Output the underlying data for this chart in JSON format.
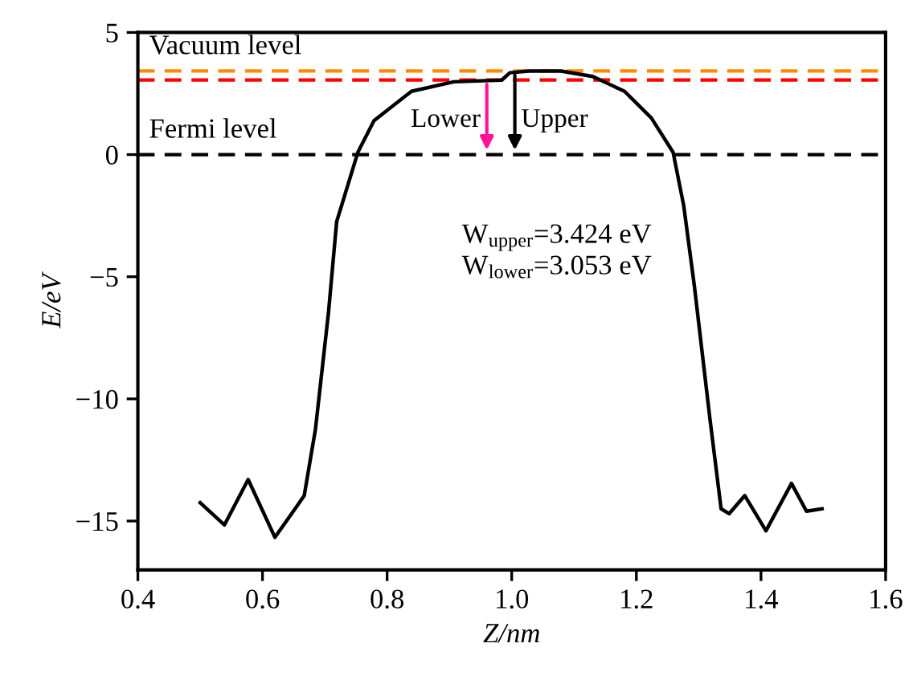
{
  "chart_data": {
    "type": "line",
    "xlabel": "Z/nm",
    "ylabel": "E/eV",
    "xlim": [
      0.4,
      1.6
    ],
    "xticks": [
      0.4,
      0.6,
      0.8,
      {
        "value": 1,
        "label": "1.0"
      },
      1.2,
      1.4,
      1.6
    ],
    "ylim": [
      -17,
      5
    ],
    "yticks": [
      -15,
      -10,
      -5,
      0,
      5
    ],
    "x": [
      0.5,
      0.539,
      0.577,
      0.62,
      0.655,
      0.667,
      0.685,
      0.706,
      0.719,
      0.753,
      0.779,
      0.839,
      0.907,
      0.984,
      0.997,
      1.027,
      1.079,
      1.13,
      1.181,
      1.224,
      1.259,
      1.276,
      1.293,
      1.318,
      1.336,
      1.349,
      1.374,
      1.408,
      1.449,
      1.473,
      1.498
    ],
    "series": [
      {
        "color": "#000000",
        "values": [
          -14.25,
          -15.16,
          -13.3,
          -15.67,
          -14.4,
          -13.96,
          -11.24,
          -6.45,
          -2.75,
          0.09,
          1.39,
          2.59,
          2.98,
          3.05,
          3.35,
          3.42,
          3.42,
          3.2,
          2.59,
          1.5,
          0.09,
          -2.09,
          -5.36,
          -10.8,
          -14.5,
          -14.7,
          -13.96,
          -15.4,
          -13.46,
          -14.6,
          -14.5
        ]
      }
    ],
    "ref_lines": [
      {
        "axis": "y",
        "value": 3.424,
        "label": "Vacuum level",
        "color": "#ff8c00",
        "line_style": "dashed"
      },
      {
        "axis": "y",
        "value": 3.053,
        "color": "#ff0000",
        "line_style": "dashed"
      },
      {
        "axis": "y",
        "value": 0,
        "label": "Fermi level",
        "color": "#000000",
        "line_style": "dashed"
      }
    ],
    "annotations": [
      {
        "text": "Lower",
        "x": 0.96,
        "y": 3.053
      },
      {
        "text": "Upper",
        "x": 1.005,
        "y": 3.424
      },
      "W$_{upper}$=3.424 eV\nW$_{lower}$=3.053 eV"
    ],
    "grid": false,
    "marker": "none",
    "line_style": "solid"
  }
}
